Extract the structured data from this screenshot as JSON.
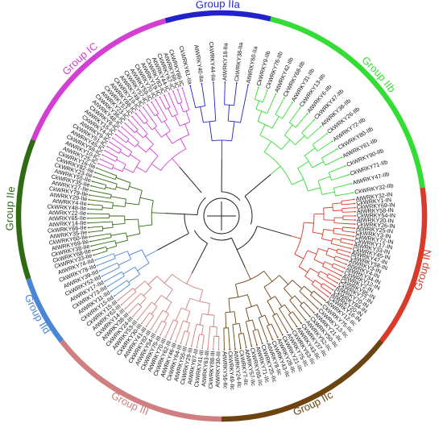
{
  "groups": [
    {
      "id": "IIa",
      "label": "Group IIa",
      "color": "#2222cc",
      "start": -16,
      "end": 14
    },
    {
      "id": "IIb",
      "label": "Group IIb",
      "color": "#33dd33",
      "start": 14,
      "end": 82
    },
    {
      "id": "IN",
      "label": "Group IN",
      "color": "#d93a2a",
      "start": 82,
      "end": 128
    },
    {
      "id": "IIc",
      "label": "Group IIc",
      "color": "#6b4410",
      "start": 128,
      "end": 180
    },
    {
      "id": "III",
      "label": "Group III",
      "color": "#cf7f7f",
      "start": 180,
      "end": 232
    },
    {
      "id": "IId",
      "label": "Group IId",
      "color": "#4a86d4",
      "start": 232,
      "end": 252
    },
    {
      "id": "IIe",
      "label": "Group IIe",
      "color": "#2f6b12",
      "start": 252,
      "end": 292
    },
    {
      "id": "IC",
      "label": "Group IC",
      "color": "#d23fd2",
      "start": 292,
      "end": 344
    }
  ],
  "leaves": {
    "IIa": [
      "CkWRKY61-IIa",
      "AtWRKY40-IIa",
      "CkWRKY44-IIa",
      "AtWRKY18-IIa",
      "CkWRKY38-IIa",
      "AtWRKY60-IIa"
    ],
    "IIb": [
      "CkWRKY9-IIb",
      "CkWRKY76-IIb",
      "AtWRKY42-IIb",
      "CkWRKY68-IIb",
      "AtWRKY31-IIb",
      "CkWRKY13-IIb",
      "AtWRKY6-IIb",
      "CkWRKY47-IIb",
      "AtWRKY36-IIb",
      "CkWRKY26-IIb",
      "AtWRKY72-IIb",
      "CkWRKY80-IIb",
      "AtWRKY61-IIb",
      "CkWRKY90-IIb",
      "CkWRKY71-IIb",
      "AtWRKY47-IIb",
      "CkWRKY32-IIb"
    ],
    "IN": [
      "AtWRKY32-IN",
      "CkWRKY1-IN",
      "CkWRKY69-IN",
      "AtWRKY58-IN",
      "CkWRKY54-IN",
      "AtWRKY20-IN",
      "CkWRKY26-IN",
      "AtWRKY25-IN",
      "CkWRKY3-IN",
      "CkWRKY72-IN",
      "CkWRKY17-IN",
      "AtWRKY33-IN",
      "CkWRKY45-IN",
      "AtWRKY47-IN",
      "CkWRKY58-IN",
      "AtWRKY3-IN",
      "AtWRKY4-IN",
      "AtWRKY34-IN",
      "CkWRKY12-IN",
      "AtWRKY2-IN",
      "CkWRKY85-IN",
      "CkWRKY77-IN",
      "AtWRKY70-IN",
      "CkWRKY84-IN",
      "AtWRKY20-IN",
      "CkWRKY16-IN"
    ],
    "IIc": [
      "AtWRKY12-IIc",
      "CkWRKY75-IIc",
      "CkWRKY13-IIc",
      "AtWRKY21-IIc",
      "CkWRKY50-IIc",
      "AtWRKY52-IIc",
      "CkWRKY37-IIc",
      "AtWRKY43-IIc",
      "CkWRKY63-IIc",
      "AtWRKY75-IIc",
      "CkWRKY21-IIc",
      "AtWRKY28-IIc",
      "CkWRKY43-IIc",
      "AtWRKY8-IIc",
      "CkWRKY25-IIc",
      "AtWRKY71-IIc",
      "CkWRKY65-IIc",
      "AtWRKY57-IIc",
      "CkWRKY7-IIc",
      "AtWRKY24-IIc",
      "CkWRKY49-IIc",
      "AtWRKY56-IIc"
    ],
    "III": [
      "AtWRKY30-III",
      "CkWRKY88-III",
      "AtWRKY63-III",
      "CkWRKY41-III",
      "AtWRKY67-III",
      "CkWRKY29-III",
      "AtWRKY55-III",
      "CkWRKY64-III",
      "AtWRKY46-III",
      "CkWRKY62-III",
      "AtWRKY70-III",
      "CkWRKY75-III",
      "AtWRKY54-III",
      "CkWRKY82-III",
      "AtWRKY41-III",
      "CkWRKY30-III",
      "AtWRKY53-III",
      "CkWRKY24-III",
      "AtWRKY38-III",
      "CkWRKY14-III",
      "AtWRKY62-III",
      "CkWRKY15-III"
    ],
    "IId": [
      "CkWRKY15-IId",
      "AtWRKY11-IId",
      "CkWRKY73-IId",
      "AtWRKY17-IId",
      "CkWRKY52-IId",
      "AtWRKY39-IId",
      "CkWRKY78-IId",
      "AtWRKY74-IId"
    ],
    "IIe": [
      "CkWRKY33-IIe",
      "CkWRKY68-IIe",
      "CkWRKY38-IIe",
      "AtWRKY69-IIe",
      "CkWRKY60-IIe",
      "AtWRKY35-IIe",
      "CkWRKY66-IIe",
      "AtWRKY14-IIe",
      "AtWRKY65-IIe",
      "AtWRKY22-IIe",
      "CkWRKY48-IIe",
      "AtWRKY4-IIe",
      "AtWRKY29-IIe",
      "CkWRKY79-IIe",
      "AtWRKY27-IIe",
      "CkWRKY35-IIe",
      "AtWRKY55-IIe",
      "CkWRKY23-IIe",
      "CkWRKY82-IIe",
      "CkWRKY16-IIe"
    ],
    "IC": [
      "AtWRKY25-IC",
      "AtWRKY10-IC",
      "CkWRKY59-IC",
      "AtWRKY45-IC",
      "CkWRKY51-IC",
      "AtWRKY9-IC",
      "CkWRKY4-IC",
      "AtWRKY15-IC",
      "CkWRKY8-IC",
      "AtWRKY48-IC",
      "CkWRKY36-IC",
      "AtWRKY23-IC",
      "CkWRKY57-IC",
      "AtWRKY68-IC",
      "CkWRKY19-IC",
      "AtWRKY49-IC",
      "CkWRKY57-IC",
      "AtWRKY59-IC",
      "CkWRKY70-IC",
      "AtWRKY19-IC",
      "CkWRKY83-IC",
      "AtWRKY44-IC",
      "CkWRKY67-IC",
      "AtWRKY66-IC",
      "CkWRKY86-IC"
    ]
  }
}
